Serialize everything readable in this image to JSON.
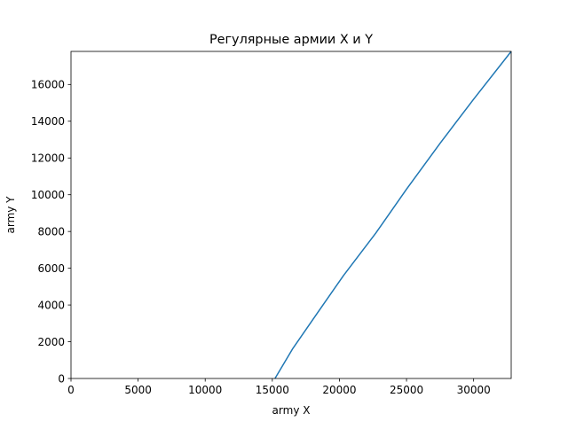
{
  "chart_data": {
    "type": "line",
    "title": "Регулярные армии X и Y",
    "xlabel": "army X",
    "ylabel": "army Y",
    "xlim": [
      0,
      32800
    ],
    "ylim": [
      0,
      17800
    ],
    "x_ticks": [
      0,
      5000,
      10000,
      15000,
      20000,
      25000,
      30000
    ],
    "y_ticks": [
      0,
      2000,
      4000,
      6000,
      8000,
      10000,
      12000,
      14000,
      16000
    ],
    "x_tick_labels": [
      "0",
      "5000",
      "10000",
      "15000",
      "20000",
      "25000",
      "30000"
    ],
    "y_tick_labels": [
      "0",
      "2000",
      "4000",
      "6000",
      "8000",
      "10000",
      "12000",
      "14000",
      "16000"
    ],
    "grid": false,
    "series": [
      {
        "color": "#1f77b4",
        "x": [
          15200,
          16500,
          18300,
          20300,
          22700,
          25000,
          27500,
          30000,
          32800
        ],
        "y": [
          0,
          1600,
          3500,
          5600,
          7900,
          10300,
          12800,
          15200,
          17800
        ]
      }
    ]
  }
}
